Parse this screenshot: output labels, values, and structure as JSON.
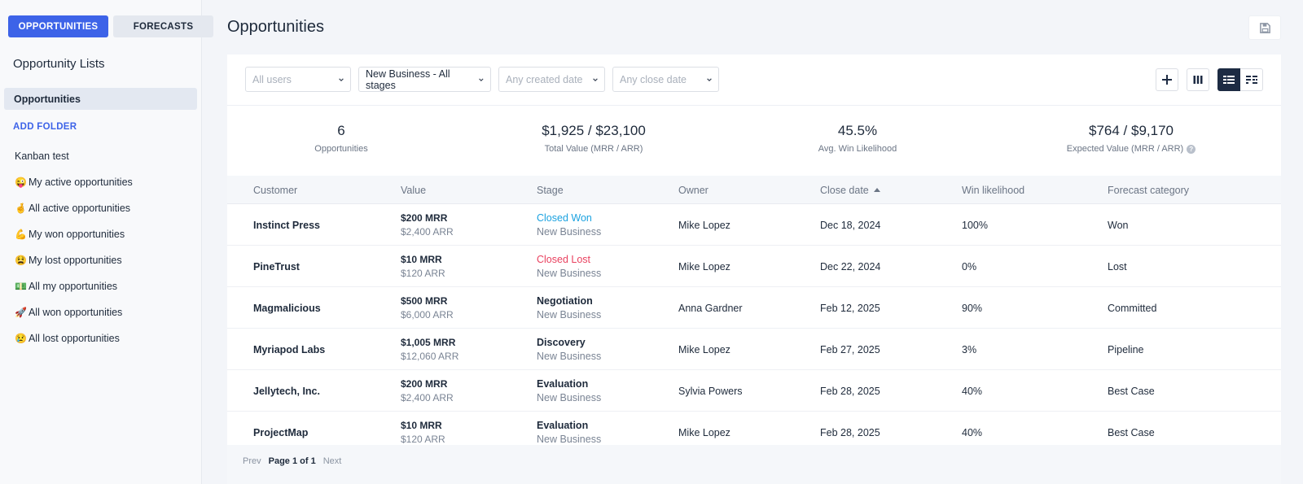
{
  "tabs": {
    "opportunities": "OPPORTUNITIES",
    "forecasts": "FORECASTS"
  },
  "sidebar": {
    "title": "Opportunity Lists",
    "selected": "Opportunities",
    "add_folder": "ADD FOLDER",
    "items": [
      {
        "emoji": "",
        "label": "Kanban test"
      },
      {
        "emoji": "😜",
        "label": "My active opportunities"
      },
      {
        "emoji": "🤞",
        "label": "All active opportunities"
      },
      {
        "emoji": "💪",
        "label": "My won opportunities"
      },
      {
        "emoji": "😫",
        "label": "My lost opportunities"
      },
      {
        "emoji": "💵",
        "label": "All my opportunities"
      },
      {
        "emoji": "🚀",
        "label": "All won opportunities"
      },
      {
        "emoji": "😢",
        "label": "All lost opportunities"
      }
    ]
  },
  "page_title": "Opportunities",
  "filters": {
    "users": "All users",
    "stages": "New Business - All stages",
    "created": "Any created date",
    "close": "Any close date"
  },
  "stats": [
    {
      "value": "6",
      "label": "Opportunities"
    },
    {
      "value": "$1,925 / $23,100",
      "label": "Total Value (MRR / ARR)"
    },
    {
      "value": "45.5%",
      "label": "Avg. Win Likelihood"
    },
    {
      "value": "$764 / $9,170",
      "label": "Expected Value (MRR / ARR)"
    }
  ],
  "columns": {
    "customer": "Customer",
    "value": "Value",
    "stage": "Stage",
    "owner": "Owner",
    "close": "Close date",
    "win": "Win likelihood",
    "forecast": "Forecast category"
  },
  "rows": [
    {
      "customer": "Instinct Press",
      "mrr": "$200 MRR",
      "arr": "$2,400 ARR",
      "stage": "Closed Won",
      "stage_type": "won",
      "pipeline": "New Business",
      "owner": "Mike Lopez",
      "close": "Dec 18, 2024",
      "win": "100%",
      "forecast": "Won"
    },
    {
      "customer": "PineTrust",
      "mrr": "$10 MRR",
      "arr": "$120 ARR",
      "stage": "Closed Lost",
      "stage_type": "lost",
      "pipeline": "New Business",
      "owner": "Mike Lopez",
      "close": "Dec 22, 2024",
      "win": "0%",
      "forecast": "Lost"
    },
    {
      "customer": "Magmalicious",
      "mrr": "$500 MRR",
      "arr": "$6,000 ARR",
      "stage": "Negotiation",
      "stage_type": "normal",
      "pipeline": "New Business",
      "owner": "Anna Gardner",
      "close": "Feb 12, 2025",
      "win": "90%",
      "forecast": "Committed"
    },
    {
      "customer": "Myriapod Labs",
      "mrr": "$1,005 MRR",
      "arr": "$12,060 ARR",
      "stage": "Discovery",
      "stage_type": "normal",
      "pipeline": "New Business",
      "owner": "Mike Lopez",
      "close": "Feb 27, 2025",
      "win": "3%",
      "forecast": "Pipeline"
    },
    {
      "customer": "Jellytech, Inc.",
      "mrr": "$200 MRR",
      "arr": "$2,400 ARR",
      "stage": "Evaluation",
      "stage_type": "normal",
      "pipeline": "New Business",
      "owner": "Sylvia Powers",
      "close": "Feb 28, 2025",
      "win": "40%",
      "forecast": "Best Case"
    },
    {
      "customer": "ProjectMap",
      "mrr": "$10 MRR",
      "arr": "$120 ARR",
      "stage": "Evaluation",
      "stage_type": "normal",
      "pipeline": "New Business",
      "owner": "Mike Lopez",
      "close": "Feb 28, 2025",
      "win": "40%",
      "forecast": "Best Case"
    }
  ],
  "pager": {
    "prev": "Prev",
    "current": "Page 1 of 1",
    "next": "Next"
  },
  "colors": {
    "accent": "#3d63e8",
    "won": "#1ba2e0",
    "lost": "#e9415f",
    "dark": "#1d2b43"
  }
}
